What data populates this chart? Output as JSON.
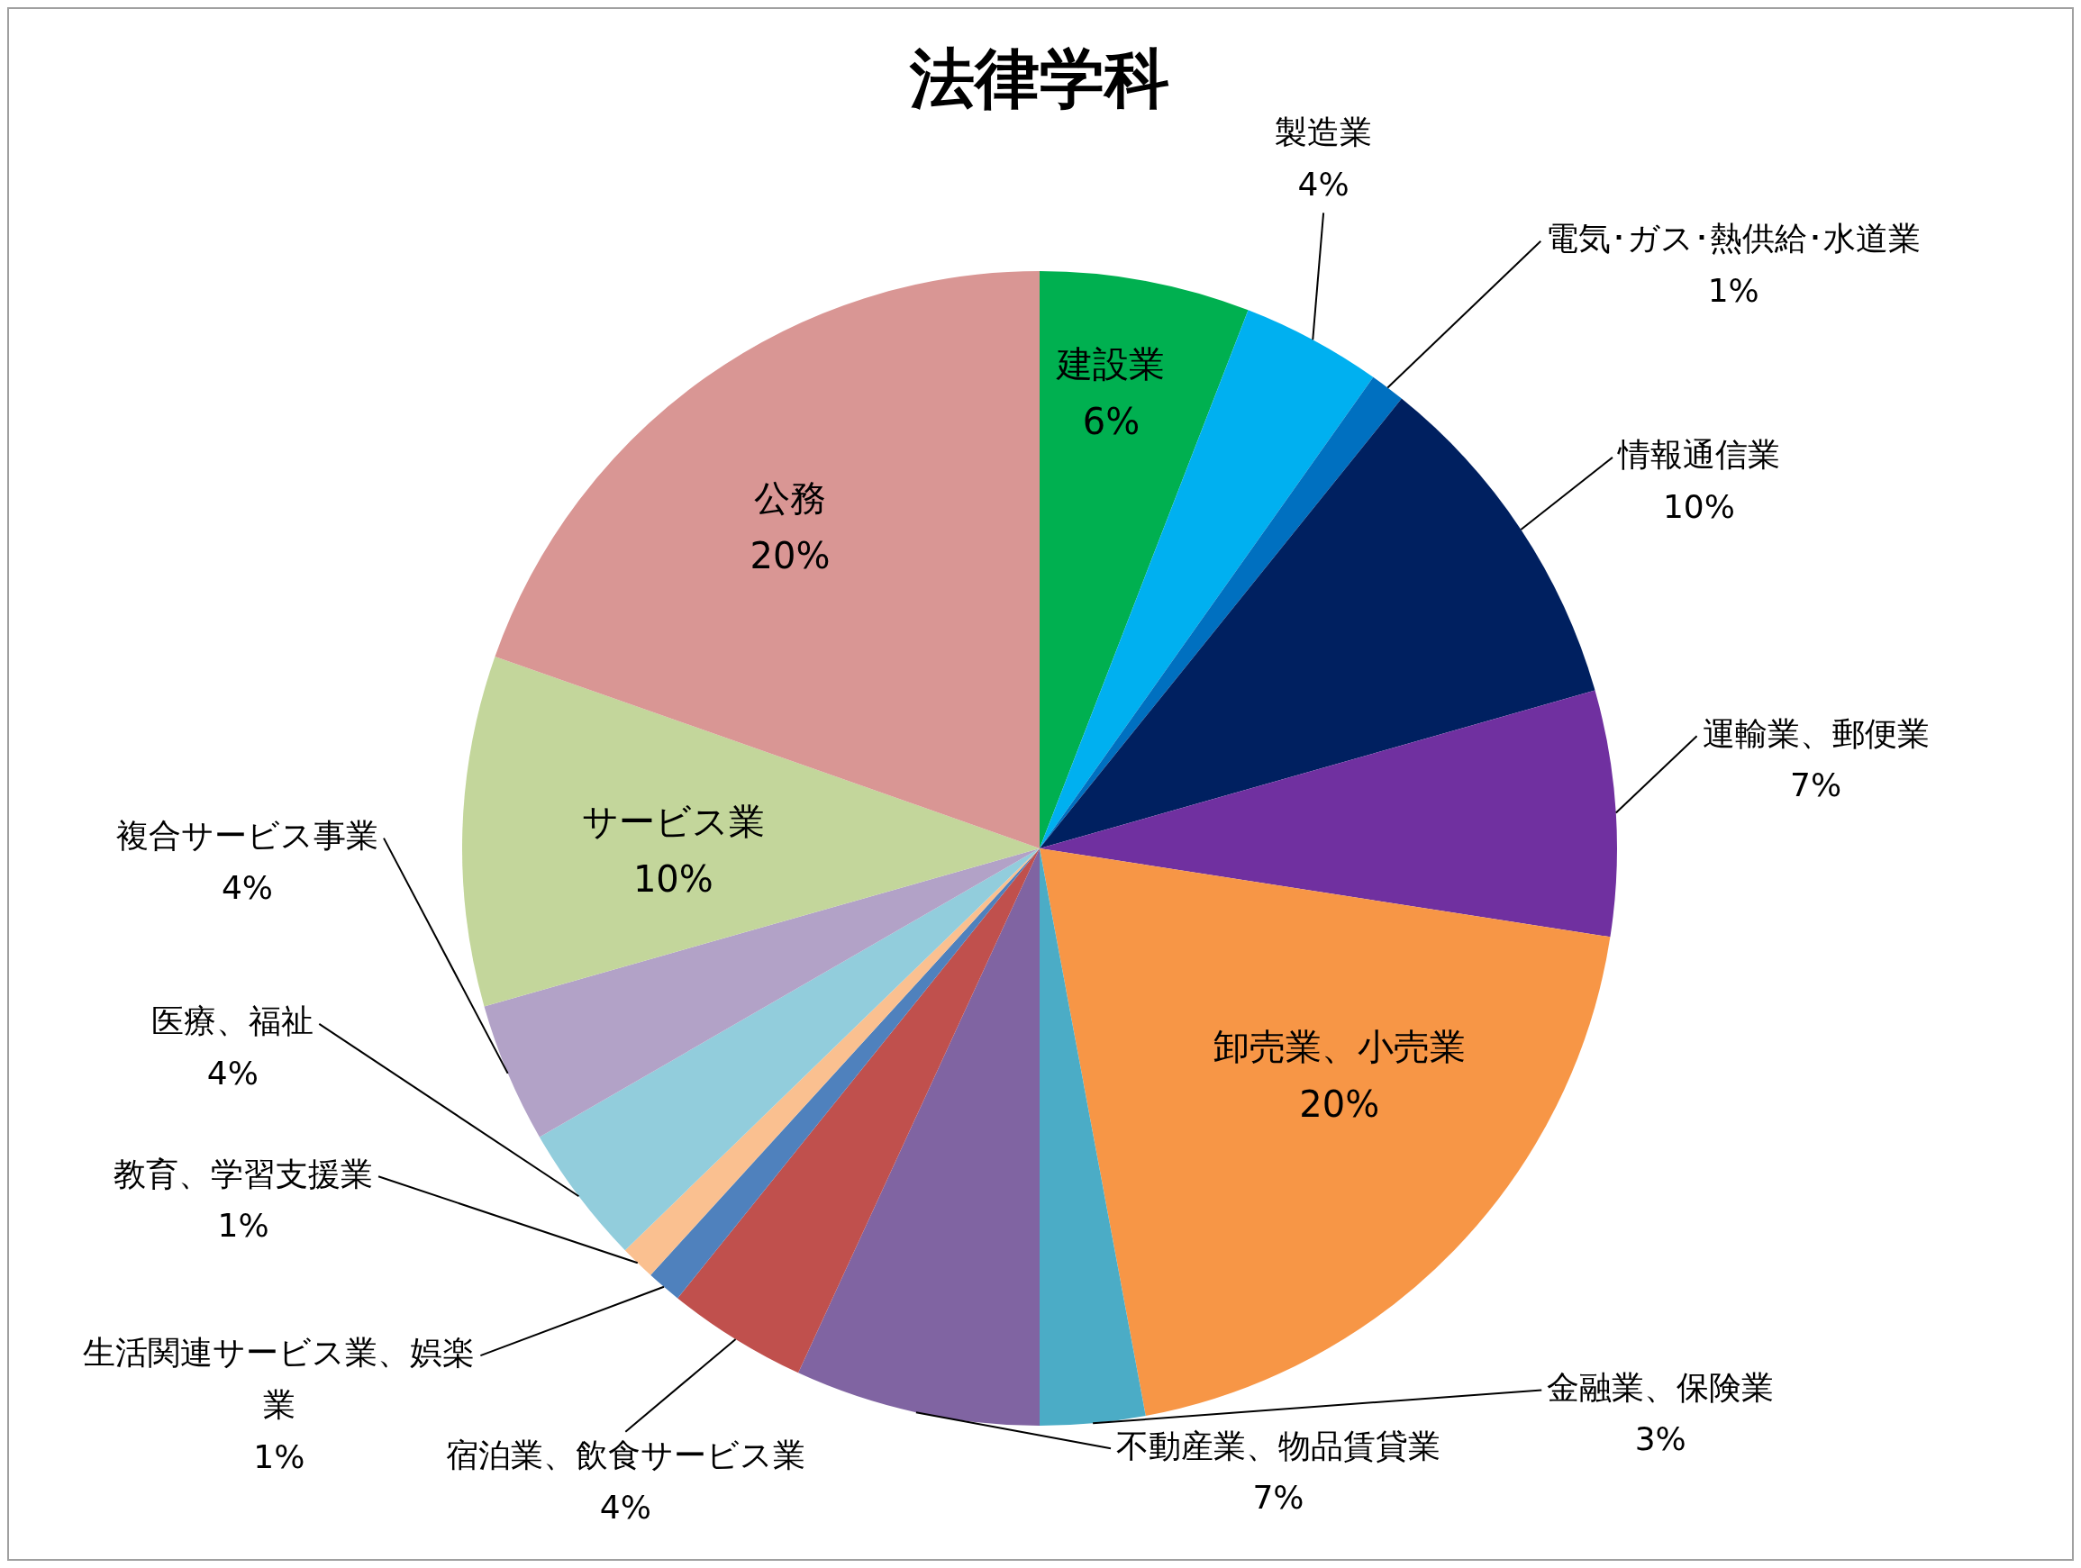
{
  "chart_data": {
    "type": "pie",
    "title": "法律学科",
    "categories": [
      "建設業",
      "製造業",
      "電気･ガス･熱供給･水道業",
      "情報通信業",
      "運輸業、郵便業",
      "卸売業、小売業",
      "金融業、保険業",
      "不動産業、物品賃貸業",
      "宿泊業、飲食サービス業",
      "生活関連サービス業、娯楽業",
      "教育、学習支援業",
      "医療、福祉",
      "複合サービス事業",
      "サービス業",
      "公務"
    ],
    "values": [
      6,
      4,
      1,
      10,
      7,
      20,
      3,
      7,
      4,
      1,
      1,
      4,
      4,
      10,
      20
    ],
    "colors": [
      "#00b050",
      "#00b0f0",
      "#0070c0",
      "#002060",
      "#7030a0",
      "#f79646",
      "#4bacc6",
      "#8064a2",
      "#c0504d",
      "#4f81bd",
      "#fac090",
      "#92cddc",
      "#b2a2c7",
      "#c3d69b",
      "#d99694"
    ],
    "value_labels": [
      "6%",
      "4%",
      "1%",
      "10%",
      "7%",
      "20%",
      "3%",
      "7%",
      "4%",
      "1%",
      "1%",
      "4%",
      "4%",
      "10%",
      "20%"
    ],
    "legend": false
  }
}
